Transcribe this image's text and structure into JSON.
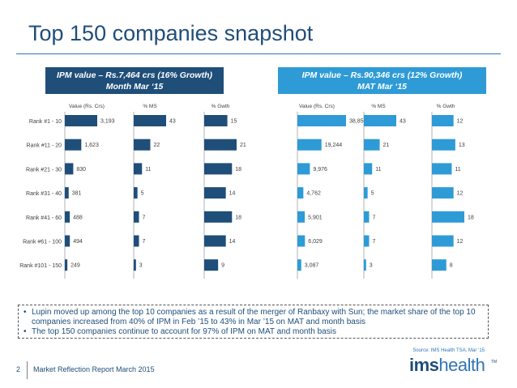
{
  "title": "Top 150 companies snapshot",
  "banners": {
    "left": {
      "line1": "IPM value – Rs.7,464 crs (16% Growth)",
      "line2": "Month Mar ‘15"
    },
    "right": {
      "line1": "IPM value – Rs.90,346 crs (12% Growth)",
      "line2": "MAT Mar ‘15"
    }
  },
  "chart_data": {
    "type": "bar",
    "orientation": "horizontal",
    "categories": [
      "Rank #1 - 10",
      "Rank #11 - 20",
      "Rank #21 - 30",
      "Rank #31 - 40",
      "Rank #41 - 60",
      "Rank #61 - 100",
      "Rank #101 - 150"
    ],
    "panels": [
      {
        "group": "month",
        "header": "Value (Rs. Crs)",
        "values": [
          3193,
          1623,
          830,
          381,
          488,
          494,
          249
        ],
        "labels": [
          "3,193",
          "1,623",
          "830",
          "381",
          "488",
          "494",
          "249"
        ]
      },
      {
        "group": "month",
        "header": "% MS",
        "values": [
          43,
          22,
          11,
          5,
          7,
          7,
          3
        ],
        "labels": [
          "43",
          "22",
          "11",
          "5",
          "7",
          "7",
          "3"
        ]
      },
      {
        "group": "month",
        "header": "% Gwth",
        "values": [
          15,
          21,
          18,
          14,
          18,
          14,
          9
        ],
        "labels": [
          "15",
          "21",
          "18",
          "14",
          "18",
          "14",
          "9"
        ]
      },
      {
        "group": "mat",
        "header": "Value (Rs. Crs)",
        "values": [
          38851,
          19244,
          9976,
          4762,
          5901,
          6029,
          3087
        ],
        "labels": [
          "38,851",
          "19,244",
          "9,976",
          "4,762",
          "5,901",
          "6,029",
          "3,087"
        ]
      },
      {
        "group": "mat",
        "header": "% MS",
        "values": [
          43,
          21,
          11,
          5,
          7,
          7,
          3
        ],
        "labels": [
          "43",
          "21",
          "11",
          "5",
          "7",
          "7",
          "3"
        ]
      },
      {
        "group": "mat",
        "header": "% Gwth",
        "values": [
          12,
          13,
          11,
          12,
          18,
          12,
          8
        ],
        "labels": [
          "12",
          "13",
          "11",
          "12",
          "18",
          "12",
          "8"
        ]
      }
    ],
    "colors": {
      "bar": "#1f4e79",
      "bar_mat": "#2e9bd6"
    }
  },
  "notes": [
    "Lupin moved up among the top 10 companies as a result of the merger of Ranbaxy with Sun; the market share of the top 10 companies increased from 40% of IPM in Feb ’15 to 43% in Mar ’15 on MAT and month basis",
    "The top 150 companies continue to account for 97% of IPM on MAT and month basis"
  ],
  "footer": {
    "page_number": "2",
    "text": "Market Reflection Report March 2015"
  },
  "source": "Source: IMS Health TSA, Mar ‘15",
  "logo": {
    "ims": "ims",
    "health": "health",
    "mark": "TM"
  }
}
